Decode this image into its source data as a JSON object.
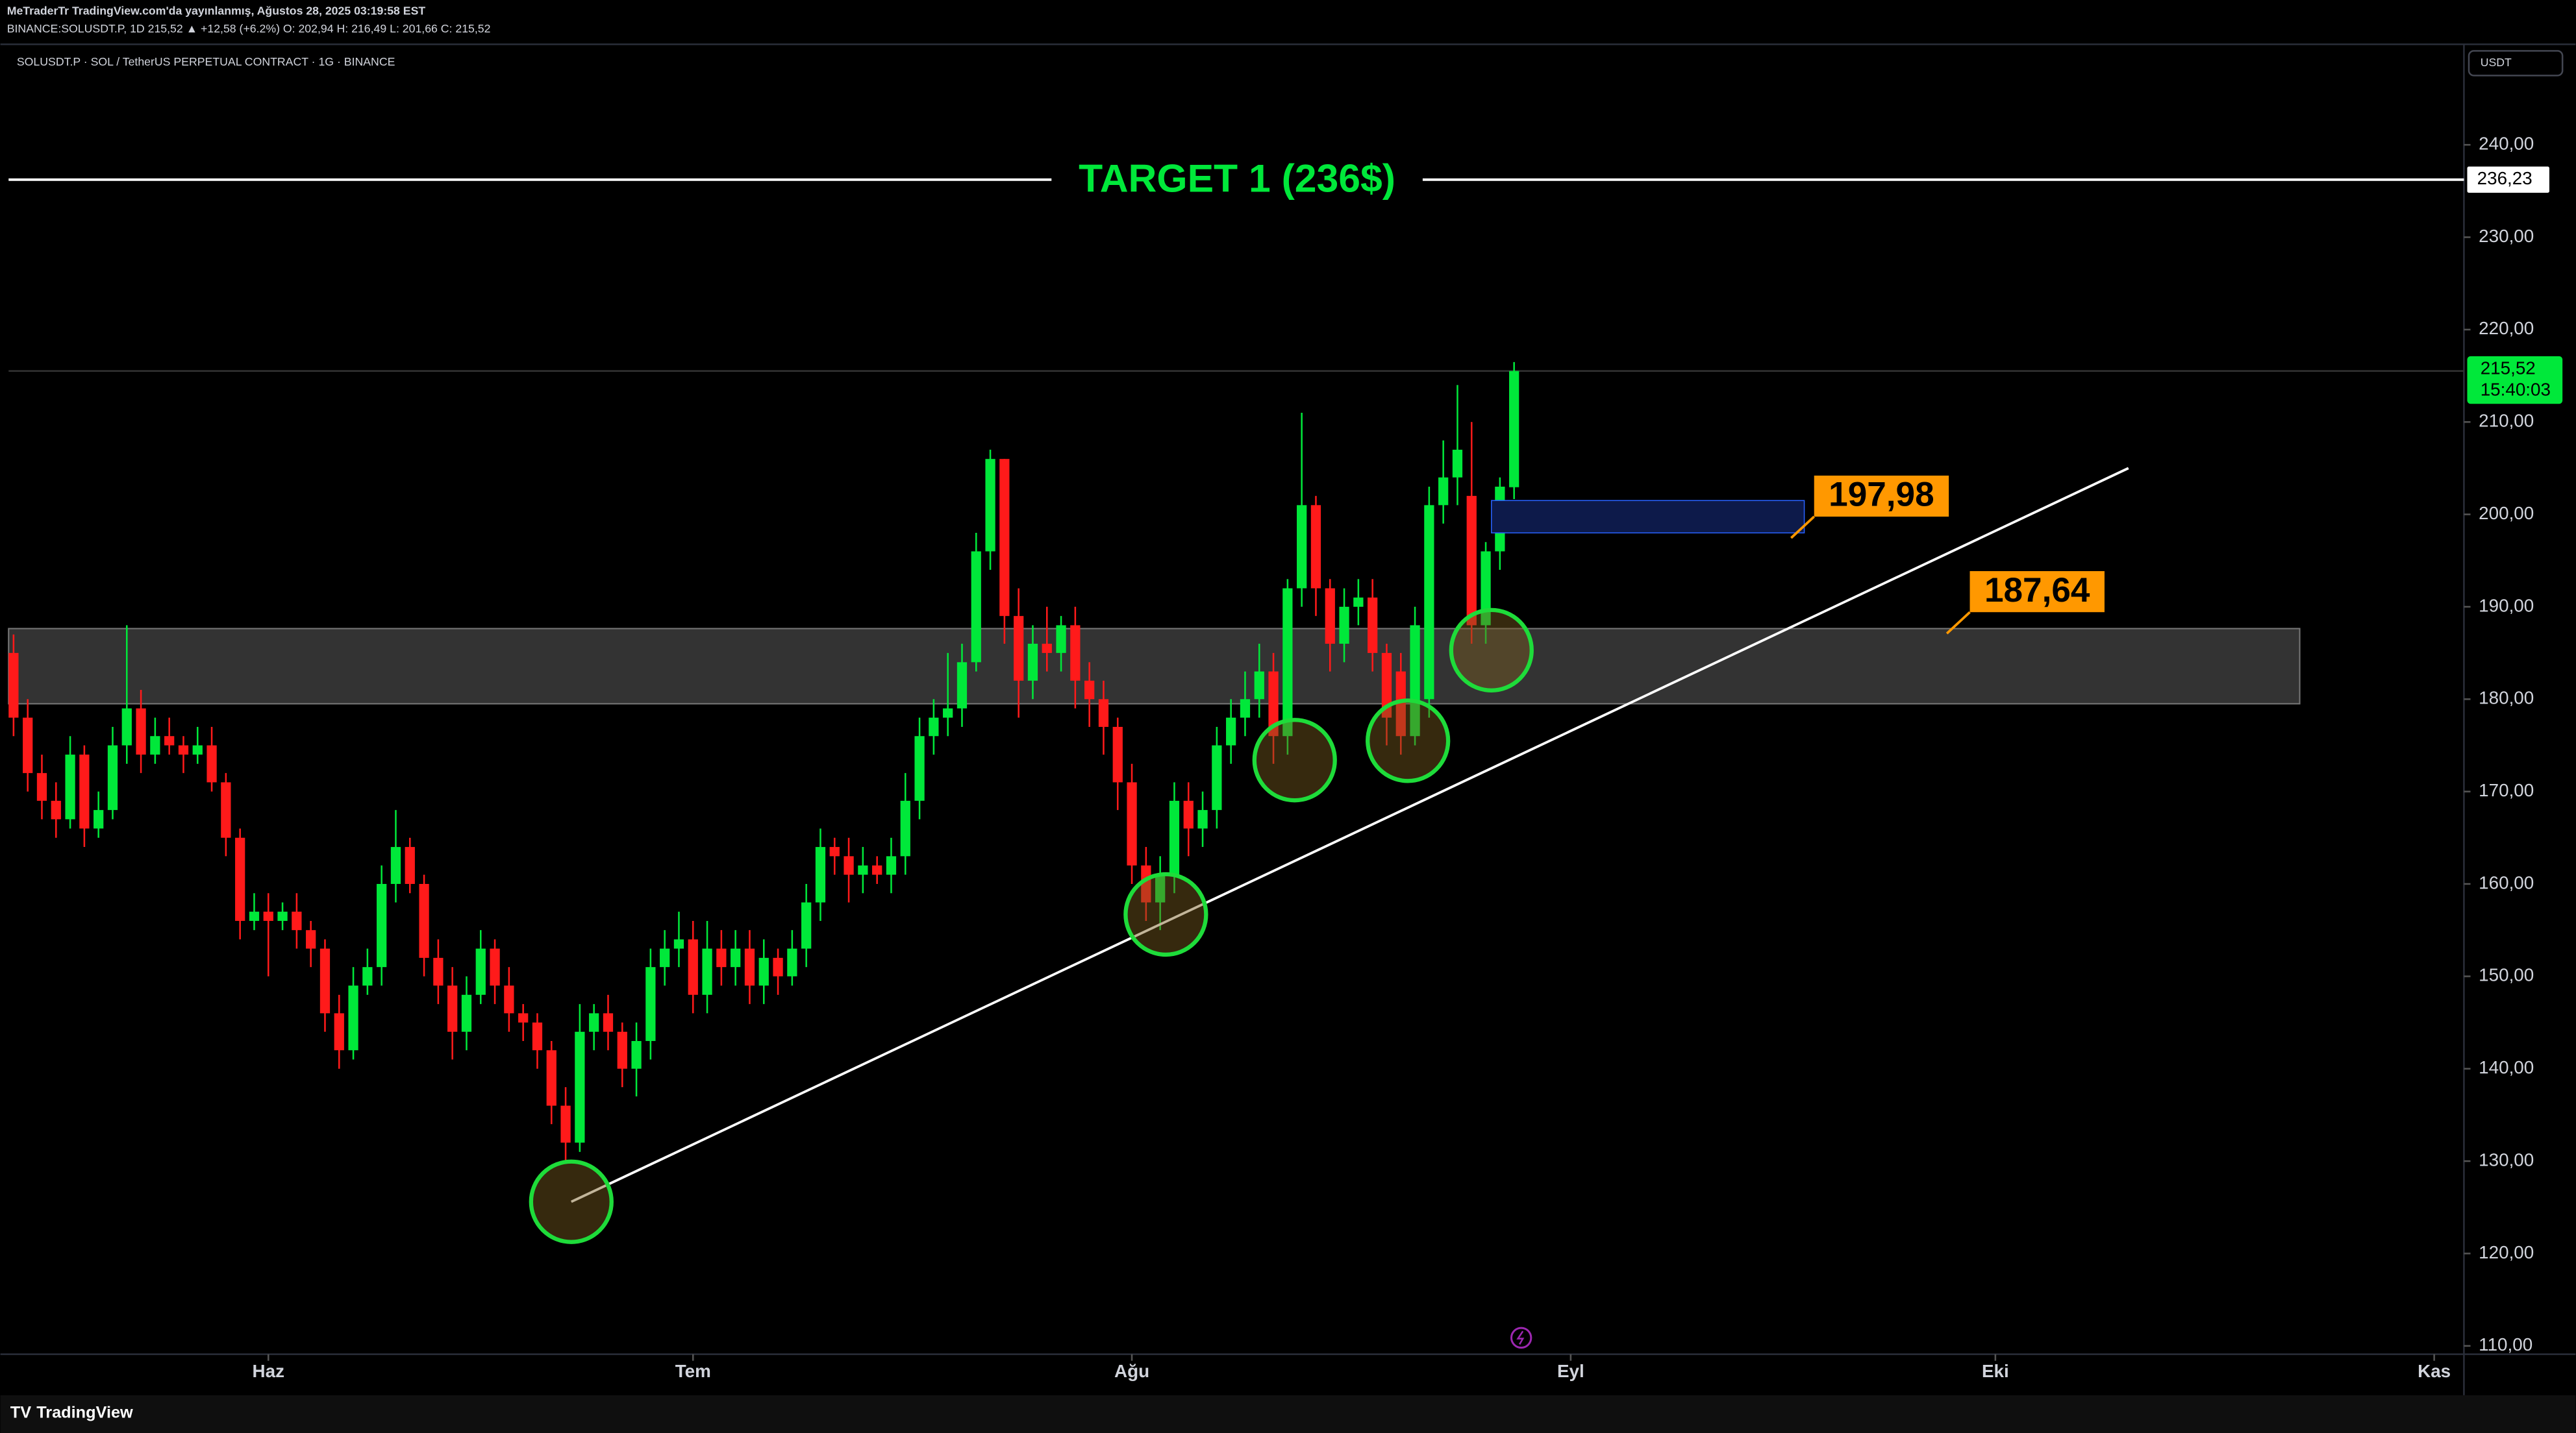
{
  "header": {
    "publisher": "MeTraderTr TradingView.com'da yayınlanmış, Ağustos 28, 2025 03:19:58 EST",
    "symbol_line": "BINANCE:SOLUSDT.P, 1D  215,52  ▲ +12,58 (+6.2%)  O: 202,94  H: 216,49  L: 201,66  C: 215,52"
  },
  "footer": {
    "brand": "TradingView"
  },
  "chart_data": {
    "type": "candlestick",
    "title": "SOLUSDT.P · SOL / TetherUS PERPETUAL CONTRACT · 1G · BINANCE",
    "currency": "USDT",
    "up_color": "#00e83a",
    "down_color": "#ff1a1a",
    "x": [
      0,
      1,
      2,
      3,
      4,
      5,
      6,
      7,
      8,
      9,
      10,
      11,
      12,
      13,
      14,
      15,
      16,
      17,
      18,
      19,
      20,
      21,
      22,
      23,
      24,
      25,
      26,
      27,
      28,
      29,
      30,
      31,
      32,
      33,
      34,
      35,
      36,
      37,
      38,
      39,
      40,
      41,
      42,
      43,
      44,
      45,
      46,
      47,
      48,
      49,
      50,
      51,
      52,
      53,
      54,
      55,
      56,
      57,
      58,
      59,
      60,
      61,
      62,
      63,
      64,
      65,
      66,
      67,
      68,
      69,
      70,
      71,
      72,
      73,
      74,
      75,
      76,
      77,
      78,
      79,
      80,
      81,
      82,
      83,
      84,
      85,
      86,
      87,
      88,
      89,
      90,
      91,
      92,
      93,
      94,
      95,
      96,
      97,
      98,
      99,
      100,
      101,
      102,
      103,
      104,
      105,
      106
    ],
    "open": [
      185,
      178,
      172,
      169,
      167,
      174,
      166,
      168,
      175,
      179,
      174,
      176,
      175,
      174,
      175,
      171,
      165,
      156,
      157,
      156,
      157,
      155,
      153,
      146,
      142,
      149,
      151,
      160,
      164,
      160,
      152,
      149,
      144,
      148,
      153,
      149,
      146,
      145,
      142,
      136,
      132,
      144,
      146,
      144,
      140,
      143,
      151,
      153,
      154,
      148,
      153,
      151,
      153,
      149,
      152,
      150,
      153,
      158,
      164,
      163,
      161,
      162,
      161,
      163,
      169,
      176,
      178,
      179,
      184,
      196,
      206,
      189,
      182,
      186,
      185,
      188,
      182,
      180,
      177,
      171,
      162,
      158,
      161,
      169,
      166,
      168,
      175,
      178,
      180,
      183,
      176,
      192,
      201,
      192,
      186,
      190,
      191,
      185,
      183,
      176,
      180,
      201,
      204,
      202,
      188,
      196,
      202.94
    ],
    "high": [
      187,
      180,
      174,
      171,
      176,
      175,
      170,
      177,
      188,
      181,
      178,
      178,
      176,
      177,
      177,
      172,
      166,
      159,
      159,
      158,
      159,
      156,
      154,
      148,
      151,
      153,
      162,
      168,
      165,
      161,
      154,
      151,
      150,
      155,
      154,
      151,
      147,
      146,
      143,
      138,
      147,
      147,
      148,
      145,
      145,
      153,
      155,
      157,
      156,
      156,
      155,
      155,
      155,
      154,
      153,
      155,
      160,
      166,
      165,
      165,
      164,
      163,
      165,
      172,
      178,
      180,
      185,
      186,
      198,
      207,
      206,
      192,
      188,
      190,
      189,
      190,
      184,
      182,
      178,
      173,
      164,
      163,
      171,
      171,
      170,
      177,
      180,
      183,
      186,
      185,
      193,
      211,
      202,
      193,
      192,
      193,
      193,
      186,
      185,
      190,
      203,
      208,
      214,
      210,
      197,
      204,
      216.49
    ],
    "low": [
      176,
      170,
      167,
      165,
      166,
      164,
      165,
      167,
      173,
      172,
      173,
      174,
      172,
      173,
      170,
      163,
      154,
      155,
      150,
      155,
      153,
      151,
      144,
      140,
      141,
      148,
      149,
      158,
      159,
      150,
      147,
      141,
      142,
      147,
      147,
      144,
      143,
      140,
      134,
      130,
      131,
      142,
      142,
      138,
      137,
      141,
      149,
      151,
      146,
      146,
      149,
      149,
      147,
      147,
      148,
      149,
      151,
      156,
      161,
      158,
      159,
      160,
      159,
      161,
      167,
      174,
      176,
      177,
      183,
      194,
      186,
      178,
      180,
      183,
      183,
      179,
      177,
      174,
      168,
      160,
      156,
      155,
      159,
      163,
      164,
      166,
      173,
      176,
      178,
      173,
      174,
      190,
      189,
      183,
      184,
      188,
      183,
      175,
      174,
      175,
      178,
      199,
      201,
      186,
      186,
      194,
      201.66
    ],
    "close": [
      178,
      172,
      169,
      167,
      174,
      166,
      168,
      175,
      179,
      174,
      176,
      175,
      174,
      175,
      171,
      165,
      156,
      157,
      156,
      157,
      155,
      153,
      146,
      142,
      149,
      151,
      160,
      164,
      160,
      152,
      149,
      144,
      148,
      153,
      149,
      146,
      145,
      142,
      136,
      132,
      144,
      146,
      144,
      140,
      143,
      151,
      153,
      154,
      148,
      153,
      151,
      153,
      149,
      152,
      150,
      153,
      158,
      164,
      163,
      161,
      162,
      161,
      163,
      169,
      176,
      178,
      179,
      184,
      196,
      206,
      189,
      182,
      186,
      185,
      188,
      182,
      180,
      177,
      171,
      162,
      158,
      161,
      169,
      166,
      168,
      175,
      178,
      180,
      183,
      176,
      192,
      201,
      192,
      186,
      190,
      191,
      185,
      178,
      176,
      188,
      201,
      204,
      207,
      188,
      196,
      203,
      215.52
    ],
    "xlim": [
      -0.35,
      173.1
    ],
    "xticks": [
      {
        "value": 18,
        "label": "Haz"
      },
      {
        "value": 48,
        "label": "Tem"
      },
      {
        "value": 79,
        "label": "Ağu"
      },
      {
        "value": 110,
        "label": "Eyl"
      },
      {
        "value": 140,
        "label": "Eki"
      },
      {
        "value": 171,
        "label": "Kas"
      }
    ],
    "ylim": [
      109.1,
      250.7
    ],
    "yticks": [
      {
        "value": 110,
        "label": "110,00"
      },
      {
        "value": 120,
        "label": "120,00"
      },
      {
        "value": 130,
        "label": "130,00"
      },
      {
        "value": 140,
        "label": "140,00"
      },
      {
        "value": 150,
        "label": "150,00"
      },
      {
        "value": 160,
        "label": "160,00"
      },
      {
        "value": 170,
        "label": "170,00"
      },
      {
        "value": 180,
        "label": "180,00"
      },
      {
        "value": 190,
        "label": "190,00"
      },
      {
        "value": 200,
        "label": "200,00"
      },
      {
        "value": 210,
        "label": "210,00"
      },
      {
        "value": 220,
        "label": "220,00"
      },
      {
        "value": 230,
        "label": "230,00"
      },
      {
        "value": 240,
        "label": "240,00"
      }
    ],
    "last_price": {
      "value": 215.52,
      "label": "215,52",
      "countdown": "15:40:03"
    },
    "target": {
      "value": 236.23,
      "label": "236,23",
      "text": "TARGET 1 (236$)",
      "color": "#00e83a"
    },
    "zone": {
      "low": 179.5,
      "high": 187.64,
      "x_end": 161.5
    },
    "box": {
      "low": 198,
      "high": 201.5,
      "x_start": 104.4,
      "x_end": 126.5,
      "color": "#0d1a4a"
    },
    "annotations": [
      {
        "value": 197.98,
        "label": "197,98",
        "x": 126.5
      },
      {
        "value": 187.64,
        "label": "187,64",
        "x": 137.5
      }
    ],
    "annotation_color": "#ff9800",
    "trendline": {
      "x": [
        39.4,
        149.4
      ],
      "y": [
        125.6,
        205
      ]
    },
    "circles": {
      "x": [
        39.4,
        81.4,
        90.5,
        98.5,
        104.4
      ],
      "y": [
        125.6,
        156.7,
        173.4,
        175.5,
        185.3
      ]
    }
  }
}
